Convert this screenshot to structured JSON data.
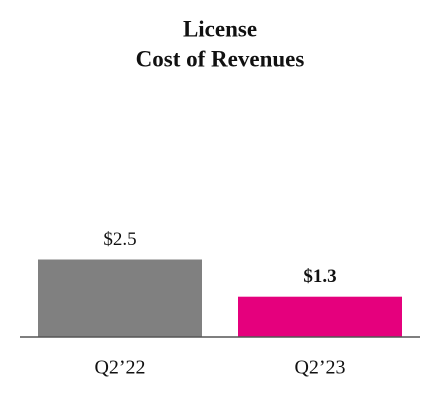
{
  "chart_data": {
    "type": "bar",
    "title": "License",
    "subtitle": "Cost of Revenues",
    "categories": [
      "Q2’22",
      "Q2’23"
    ],
    "values": [
      2.5,
      1.3
    ],
    "value_labels": [
      "$2.5",
      "$1.3"
    ],
    "colors": [
      "#808080",
      "#e5007d"
    ]
  }
}
